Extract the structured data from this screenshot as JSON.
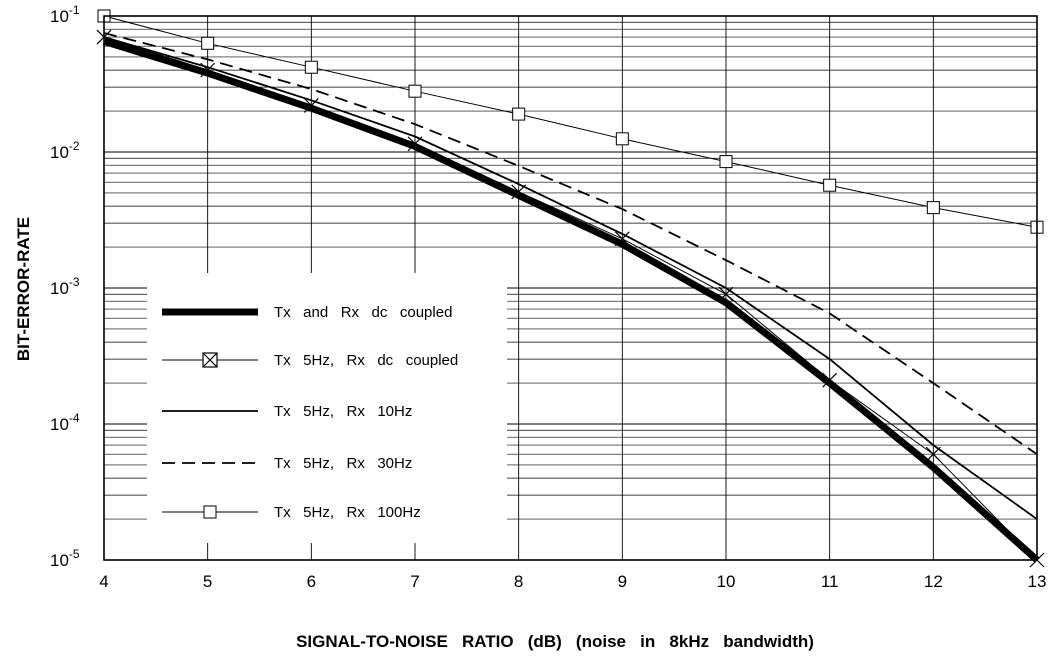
{
  "chart_data": {
    "type": "line",
    "title": "",
    "xlabel": "SIGNAL-TO-NOISE   RATIO   (dB)   (noise   in   8kHz   bandwidth)",
    "ylabel": "BIT-ERROR-RATE",
    "x_ticks": [
      "4",
      "5",
      "6",
      "7",
      "8",
      "9",
      "10",
      "11",
      "12",
      "13"
    ],
    "y_ticks": [
      {
        "base": "10",
        "exp": "-1"
      },
      {
        "base": "10",
        "exp": "-2"
      },
      {
        "base": "10",
        "exp": "-3"
      },
      {
        "base": "10",
        "exp": "-4"
      },
      {
        "base": "10",
        "exp": "-5"
      }
    ],
    "xlim": [
      4,
      13
    ],
    "ylim": [
      1e-05,
      0.1
    ],
    "yscale": "log",
    "grid": true,
    "legend_position": "lower-left",
    "series": [
      {
        "name": "Tx   and   Rx   dc   coupled",
        "style": "thick",
        "marker": "none",
        "x": [
          4,
          5,
          6,
          7,
          8,
          9,
          10,
          11,
          12,
          13
        ],
        "y": [
          0.065,
          0.038,
          0.021,
          0.011,
          0.0048,
          0.0021,
          0.00078,
          0.0002,
          4.8e-05,
          1e-05
        ]
      },
      {
        "name": "Tx   5Hz,   Rx   dc   coupled",
        "style": "thin",
        "marker": "box-x",
        "x": [
          4,
          5,
          6,
          7,
          8,
          9,
          10,
          11,
          12,
          13
        ],
        "y": [
          0.07,
          0.04,
          0.022,
          0.0115,
          0.0051,
          0.0023,
          0.0009,
          0.00021,
          6e-05,
          1e-05
        ]
      },
      {
        "name": "Tx   5Hz,   Rx   10Hz",
        "style": "solid",
        "marker": "none",
        "x": [
          4,
          5,
          6,
          7,
          8,
          9,
          10,
          11,
          12,
          13
        ],
        "y": [
          0.07,
          0.042,
          0.024,
          0.013,
          0.0058,
          0.0025,
          0.001,
          0.0003,
          7e-05,
          2e-05
        ]
      },
      {
        "name": "Tx   5Hz,   Rx   30Hz",
        "style": "dashed",
        "marker": "none",
        "x": [
          4,
          5,
          6,
          7,
          8,
          9,
          10,
          11,
          12,
          13
        ],
        "y": [
          0.075,
          0.048,
          0.029,
          0.016,
          0.0079,
          0.0038,
          0.0016,
          0.00065,
          0.0002,
          6e-05
        ]
      },
      {
        "name": "Tx   5Hz,   Rx   100Hz",
        "style": "thin",
        "marker": "box",
        "x": [
          4,
          5,
          6,
          7,
          8,
          9,
          10,
          11,
          12,
          13
        ],
        "y": [
          0.1,
          0.063,
          0.042,
          0.028,
          0.019,
          0.0125,
          0.0085,
          0.0057,
          0.0039,
          0.0028
        ]
      }
    ]
  }
}
